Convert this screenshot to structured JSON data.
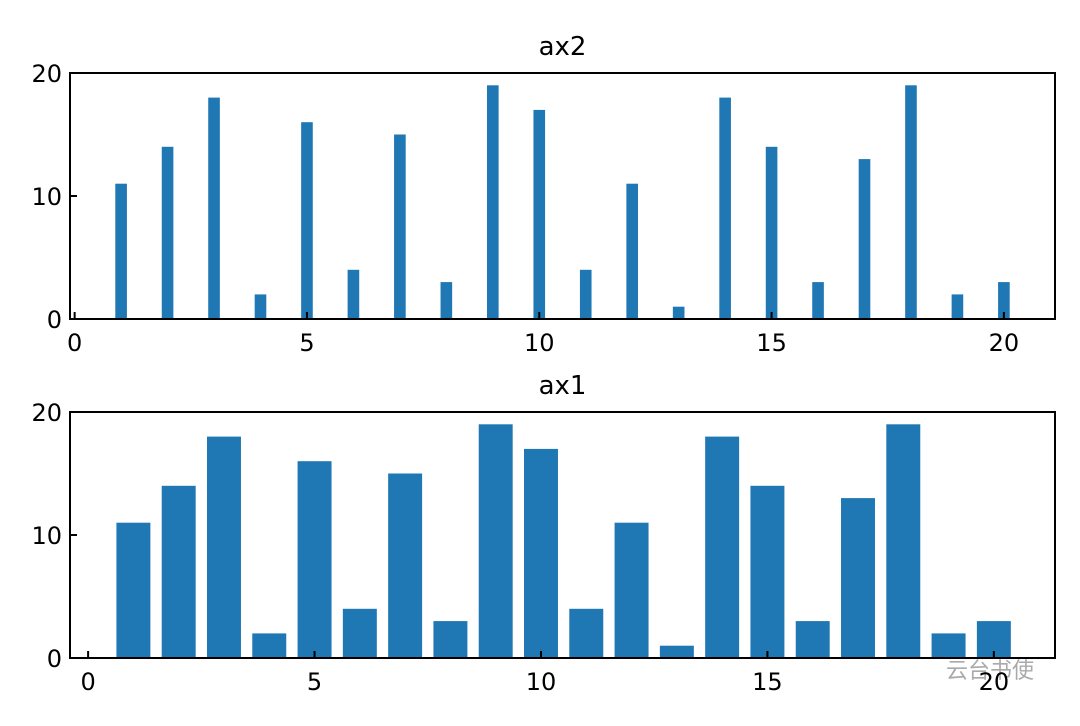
{
  "chart_data": [
    {
      "type": "bar",
      "title": "ax2",
      "x": [
        1,
        2,
        3,
        4,
        5,
        6,
        7,
        8,
        9,
        10,
        11,
        12,
        13,
        14,
        15,
        16,
        17,
        18,
        19,
        20
      ],
      "values": [
        11,
        14,
        18,
        2,
        16,
        4,
        15,
        3,
        19,
        17,
        4,
        11,
        1,
        18,
        14,
        3,
        13,
        19,
        2,
        3
      ],
      "color": "#1f77b4",
      "bar_width": 0.25,
      "xlim": [
        -0.1,
        21.1
      ],
      "xticks": [
        0,
        5,
        10,
        15,
        20
      ],
      "ylim": [
        0,
        20
      ],
      "yticks": [
        0,
        10,
        20
      ]
    },
    {
      "type": "bar",
      "title": "ax1",
      "x": [
        1,
        2,
        3,
        4,
        5,
        6,
        7,
        8,
        9,
        10,
        11,
        12,
        13,
        14,
        15,
        16,
        17,
        18,
        19,
        20
      ],
      "values": [
        11,
        14,
        18,
        2,
        16,
        4,
        15,
        3,
        19,
        17,
        4,
        11,
        1,
        18,
        14,
        3,
        13,
        19,
        2,
        3
      ],
      "color": "#1f77b4",
      "bar_width": 0.75,
      "xlim": [
        -0.4,
        21.35
      ],
      "xticks": [
        0,
        5,
        10,
        15,
        20
      ],
      "ylim": [
        0,
        20
      ],
      "yticks": [
        0,
        10,
        20
      ]
    }
  ],
  "watermark": "云台书使"
}
